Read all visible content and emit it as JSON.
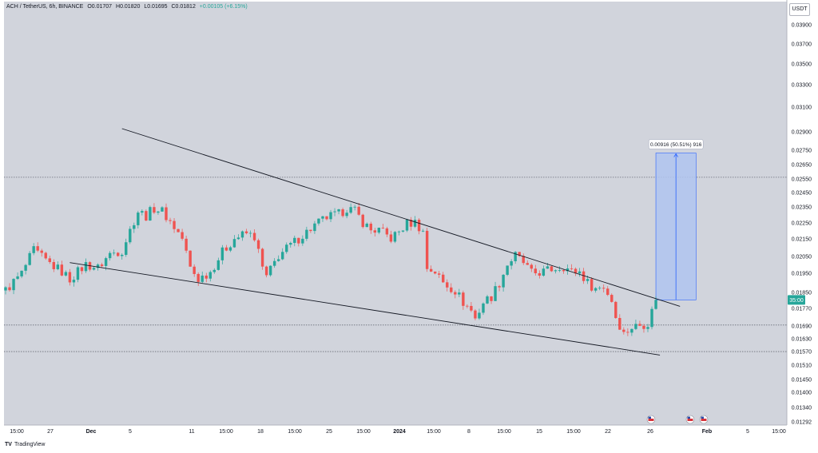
{
  "header": {
    "symbol": "ACH / TetherUS, 6h, BINANCE",
    "open": "O0.01707",
    "high": "H0.01820",
    "low": "L0.01695",
    "close": "C0.01812",
    "change": "+0.00105 (+6.15%)"
  },
  "currency_button": "USDT",
  "footer": {
    "logo": "TV",
    "brand": "TradingView"
  },
  "colors": {
    "plot_bg": "#d1d4dc",
    "up": "#26a69a",
    "down": "#ef5350",
    "measure_fill": "#b0c4f0",
    "measure_line": "#2962ff"
  },
  "icons": [
    "us-flag-icon",
    "us-flag-icon",
    "us-flag-icon"
  ],
  "chart_data": {
    "type": "candlestick",
    "y_scale": "log",
    "ylim": [
      0.01292,
      0.04
    ],
    "y_ticks": [
      "0.03900",
      "0.03700",
      "0.03500",
      "0.03300",
      "0.03100",
      "0.02900",
      "0.02750",
      "0.02650",
      "0.02550",
      "0.02450",
      "0.02350",
      "0.02250",
      "0.02150",
      "0.02050",
      "0.01950",
      "0.01850",
      "0.01770",
      "0.01690",
      "0.01630",
      "0.01570",
      "0.01510",
      "0.01450",
      "0.01400",
      "0.01340",
      "0.01292"
    ],
    "x_ticks": [
      "15:00",
      "27",
      "Dec",
      "5",
      "11",
      "15:00",
      "18",
      "15:00",
      "25",
      "15:00",
      "2024",
      "15:00",
      "8",
      "15:00",
      "15",
      "15:00",
      "22",
      "26",
      "Feb",
      "5",
      "15:00"
    ],
    "current_price_label": "35:00",
    "last_price": 0.01812,
    "price_path": [
      [
        0.0,
        0.0186
      ],
      [
        2.0,
        0.0195
      ],
      [
        3.5,
        0.0208
      ],
      [
        5.0,
        0.0202
      ],
      [
        7.0,
        0.0196
      ],
      [
        8.0,
        0.0192
      ],
      [
        10.0,
        0.02
      ],
      [
        11.5,
        0.0198
      ],
      [
        13.0,
        0.0206
      ],
      [
        14.5,
        0.0208
      ],
      [
        15.5,
        0.022
      ],
      [
        16.5,
        0.0232
      ],
      [
        17.5,
        0.0229
      ],
      [
        18.5,
        0.0234
      ],
      [
        19.5,
        0.0232
      ],
      [
        21.0,
        0.0222
      ],
      [
        22.0,
        0.0215
      ],
      [
        23.0,
        0.0198
      ],
      [
        24.0,
        0.0192
      ],
      [
        25.5,
        0.0196
      ],
      [
        27.0,
        0.0207
      ],
      [
        28.5,
        0.0215
      ],
      [
        30.0,
        0.0218
      ],
      [
        31.0,
        0.0216
      ],
      [
        32.0,
        0.0198
      ],
      [
        32.5,
        0.0193
      ],
      [
        34.0,
        0.0205
      ],
      [
        35.5,
        0.0211
      ],
      [
        37.0,
        0.0217
      ],
      [
        38.5,
        0.0223
      ],
      [
        40.0,
        0.0228
      ],
      [
        41.5,
        0.023
      ],
      [
        42.5,
        0.0234
      ],
      [
        43.5,
        0.0232
      ],
      [
        44.5,
        0.0225
      ],
      [
        45.5,
        0.022
      ],
      [
        46.5,
        0.022
      ],
      [
        48.0,
        0.0215
      ],
      [
        49.0,
        0.0219
      ],
      [
        50.0,
        0.0224
      ],
      [
        51.0,
        0.0225
      ],
      [
        52.0,
        0.0219
      ],
      [
        52.5,
        0.0198
      ],
      [
        53.5,
        0.0196
      ],
      [
        54.5,
        0.019
      ],
      [
        56.0,
        0.0186
      ],
      [
        57.0,
        0.018
      ],
      [
        58.0,
        0.0176
      ],
      [
        58.5,
        0.0172
      ],
      [
        59.5,
        0.018
      ],
      [
        60.5,
        0.0183
      ],
      [
        61.5,
        0.019
      ],
      [
        62.5,
        0.02
      ],
      [
        63.5,
        0.0205
      ],
      [
        64.5,
        0.0201
      ],
      [
        65.5,
        0.0195
      ],
      [
        67.0,
        0.0196
      ],
      [
        68.5,
        0.0198
      ],
      [
        69.5,
        0.0199
      ],
      [
        70.5,
        0.0196
      ],
      [
        71.5,
        0.0196
      ],
      [
        72.5,
        0.019
      ],
      [
        73.5,
        0.0187
      ],
      [
        74.5,
        0.0188
      ],
      [
        75.5,
        0.0181
      ],
      [
        76.0,
        0.0173
      ],
      [
        77.0,
        0.0165
      ],
      [
        78.0,
        0.0168
      ],
      [
        79.0,
        0.0169
      ],
      [
        80.0,
        0.017
      ],
      [
        81.0,
        0.01812
      ]
    ],
    "annotations": {
      "upper_trendline": [
        [
          14.5,
          0.0292
        ],
        [
          84.0,
          0.0178
        ]
      ],
      "lower_trendline": [
        [
          8.0,
          0.0201
        ],
        [
          81.5,
          0.01555
        ]
      ],
      "horizontal_levels": [
        0.0255,
        0.0169,
        0.0157
      ],
      "measure": {
        "x_start": 81.0,
        "x_end": 86.0,
        "from_price": 0.01812,
        "to_price": 0.02728,
        "label": "0.00916 (50.51%) 916"
      }
    }
  }
}
